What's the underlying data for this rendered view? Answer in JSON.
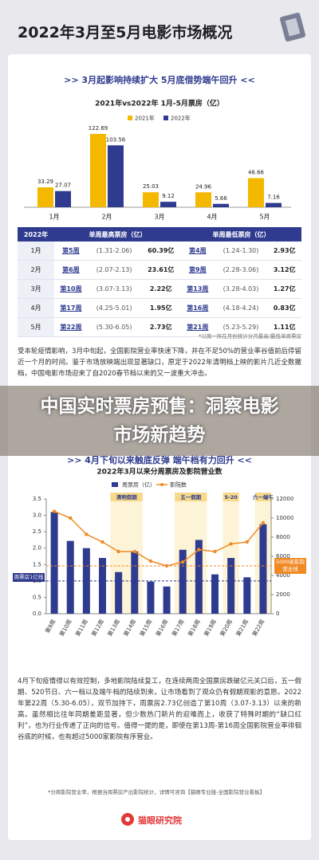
{
  "header": {
    "title": "2022年3月至5月电影市场概况"
  },
  "section1": {
    "title": ">> 3月起影响持续扩大 5月底借势端午回升 <<"
  },
  "chart_data": [
    {
      "type": "bar",
      "title": "2021年vs2022年 1月-5月票房（亿）",
      "categories": [
        "1月",
        "2月",
        "3月",
        "4月",
        "5月"
      ],
      "series": [
        {
          "name": "2021年",
          "color": "#f5b800",
          "values": [
            33.29,
            122.69,
            25.03,
            24.96,
            48.66
          ]
        },
        {
          "name": "2022年",
          "color": "#2f3b8f",
          "values": [
            27.07,
            103.56,
            9.12,
            5.66,
            7.16
          ]
        }
      ]
    },
    {
      "type": "combo",
      "title": "2022年3月以来分周票房及影院营业数",
      "categories": [
        "第9周",
        "第10周",
        "第11周",
        "第12周",
        "第13周",
        "第14周",
        "第15周",
        "第16周",
        "第17周",
        "第18周",
        "第19周",
        "第20周",
        "第21周",
        "第22周"
      ],
      "series": [
        {
          "name": "周票房（亿）",
          "type": "bar",
          "color": "#2f3b8f",
          "values": [
            3.1,
            2.22,
            2.0,
            1.7,
            1.27,
            1.9,
            0.98,
            0.83,
            1.95,
            2.25,
            1.2,
            1.7,
            1.11,
            2.73
          ]
        },
        {
          "name": "影院数",
          "type": "line",
          "axis": "y2",
          "color": "#f08a24",
          "values": [
            10700,
            10000,
            8300,
            7500,
            6500,
            6500,
            5500,
            5000,
            5400,
            6700,
            6500,
            7300,
            7500,
            9500
          ]
        }
      ],
      "ylim": [
        0,
        3.5
      ],
      "yticks": [
        {
          "value": 0,
          "label": "0.0"
        },
        {
          "value": 0.5,
          "label": "0.5"
        },
        {
          "value": 1,
          "label": "1.0"
        },
        {
          "value": 1.5,
          "label": "1.5"
        },
        {
          "value": 2,
          "label": "2.0"
        },
        {
          "value": 2.5,
          "label": "2.5"
        },
        {
          "value": 3,
          "label": "3.0"
        },
        {
          "value": 3.5,
          "label": "3.5"
        }
      ],
      "y2lim": [
        0,
        12000
      ],
      "y2ticks": [
        0,
        2000,
        4000,
        6000,
        8000,
        10000,
        12000
      ],
      "annotations": [
        "清明假期",
        "五一假期",
        "5-20",
        "六一端午"
      ],
      "ref_lines": [
        {
          "value": 1,
          "axis": "y",
          "label": "周票房1亿线"
        },
        {
          "value": 5000,
          "axis": "y2",
          "label": "5000家影院营业线"
        }
      ]
    }
  ],
  "table": {
    "header": [
      "2022年",
      "单周最高票房（亿）",
      "单周最低票房（亿）"
    ],
    "rows": [
      [
        "1月",
        "第5周",
        "(1.31-2.06)",
        "60.39亿",
        "第4周",
        "(1.24-1.30)",
        "2.93亿"
      ],
      [
        "2月",
        "第6周",
        "(2.07-2.13)",
        "23.61亿",
        "第9周",
        "(2.28-3.06)",
        "3.12亿"
      ],
      [
        "3月",
        "第10周",
        "(3.07-3.13)",
        "2.22亿",
        "第13周",
        "(3.28-4.03)",
        "1.27亿"
      ],
      [
        "4月",
        "第17周",
        "(4.25-5.01)",
        "1.95亿",
        "第16周",
        "(4.18-4.24)",
        "0.83亿"
      ],
      [
        "5月",
        "第22周",
        "(5.30-6.05)",
        "2.73亿",
        "第21周",
        "(5.23-5.29)",
        "1.11亿"
      ]
    ],
    "note": "*以周一所在月份统计分月最高/最低单周票房"
  },
  "paragraph1": "受本轮疫情影响，3月中旬起，全国影院营业率快速下降，并在不足50%的营业率谷值前后停留近一个月的时间。鉴于市场放映端出现显著缺口，原定于2022年清明档上映的影片几近全数撤档，中国电影市场迎来了自2020春节档以来的又一波重大冲击。",
  "overlay": {
    "title": "中国实时票房预售：洞察电影市场新趋势"
  },
  "section2": {
    "title": ">> 4月下旬以来触底反弹 端午档有力回升 <<"
  },
  "paragraph2": "4月下旬疫情得以有效控制，多地影院陆续复工，在连续两周全国票房跌破亿元关口后，五一假期、520节日、六一档以及端午档的陆续到来，让市场看到了观众仍有假期观影的意愿。2022年第22周（5.30-6.05），双节加持下，周票房2.73亿创造了第10周（3.07-3.13）以来的新高。虽然相比往年同期差距显著，但少数热门新片的迎难而上，收获了特殊时期的“缺口红利”，也为行业传递了正向的信号。值得一提的是，即使在第13周-第16周全国影院营业率徘徊谷底的时候，也有超过5000家影院有序营业。",
  "footnote": "*分周影院营业率，根据当周票房产出影院统计，详情可咨询【猫眼专业版-全国影院营业看板】",
  "footer": {
    "brand": "猫眼研究院"
  }
}
